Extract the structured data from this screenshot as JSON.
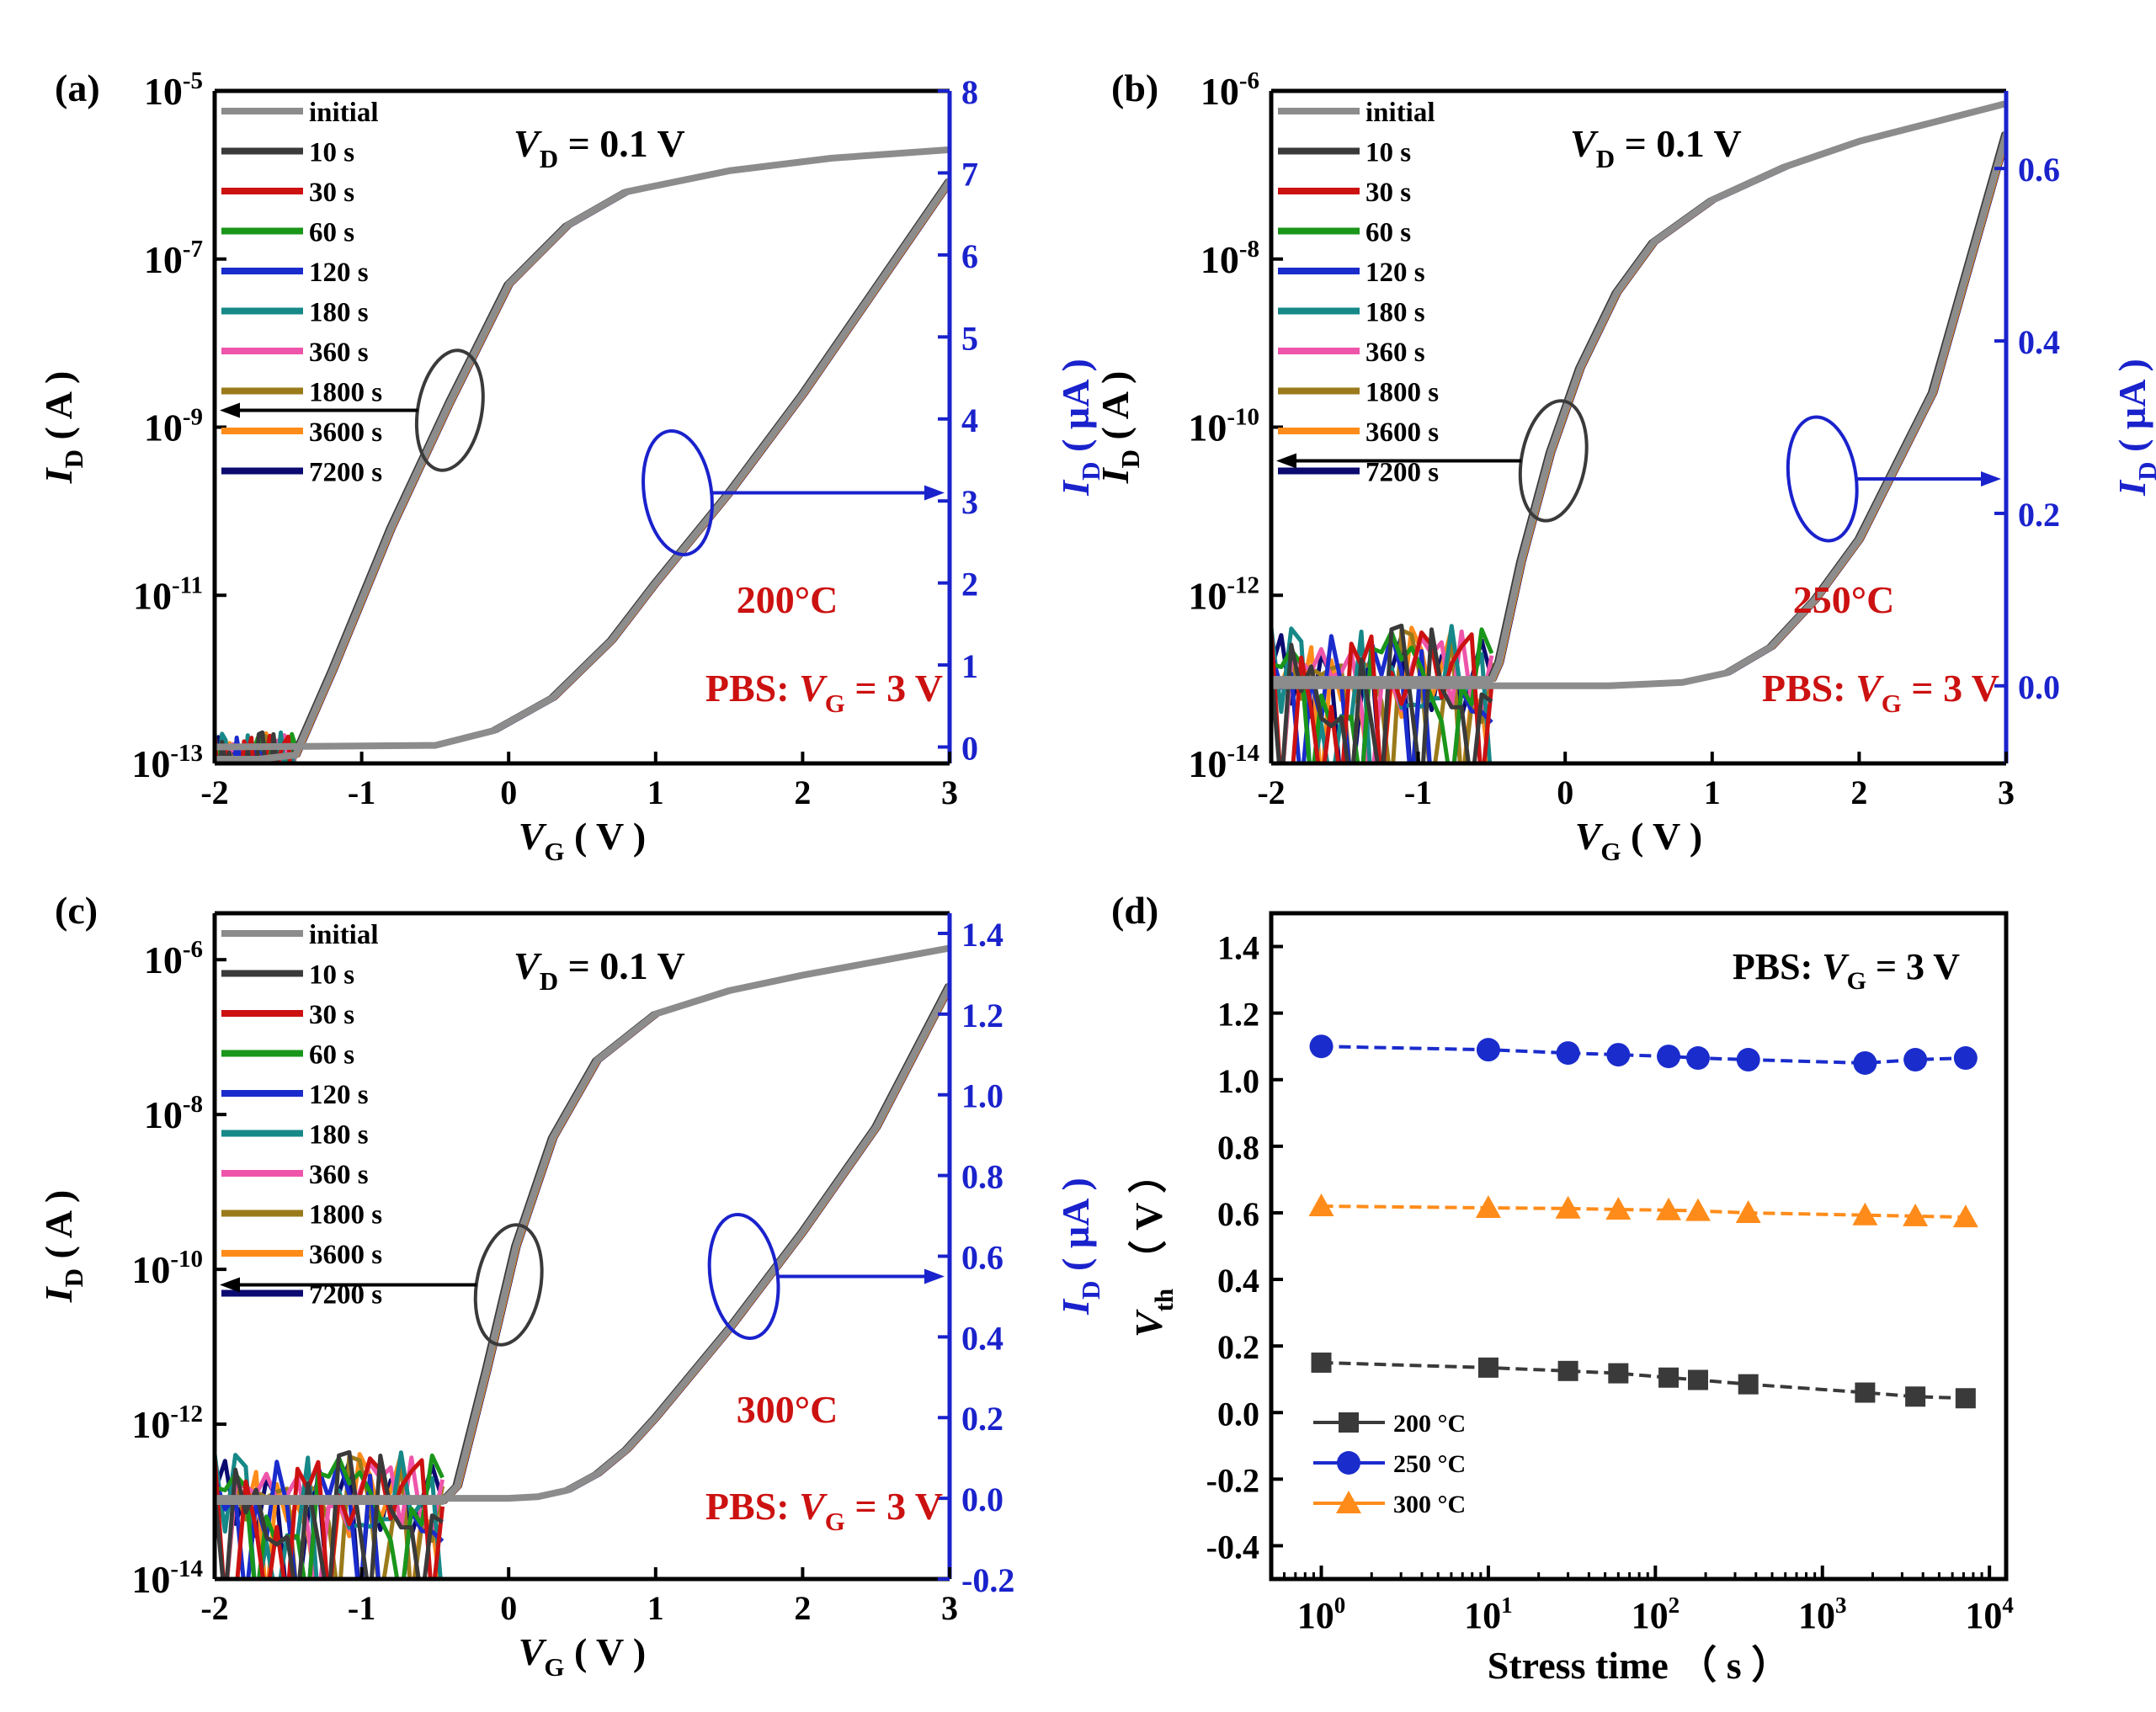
{
  "figure": {
    "legend_labels": [
      "initial",
      "10 s",
      "30 s",
      "60 s",
      "120 s",
      "180 s",
      "360 s",
      "1800 s",
      "3600 s",
      "7200 s"
    ],
    "legend_colors": [
      "#8c8c8c",
      "#3a3a3a",
      "#cc1111",
      "#1a961a",
      "#1a2ccc",
      "#168888",
      "#ee55aa",
      "#9a7a1a",
      "#ff8c1a",
      "#0a0a70"
    ],
    "axis_blue": "#1a22cc",
    "annot_red": "#cc1111",
    "text_black": "#000000"
  },
  "chart_data": [
    {
      "id": "a",
      "type": "line",
      "panel_label": "(a)",
      "vd_label": [
        "V",
        "D",
        " = 0.1 V"
      ],
      "temperature": "200°C",
      "pbs_label": [
        "PBS: ",
        "V",
        "G",
        " = 3 V"
      ],
      "xlabel": [
        "V",
        "G",
        " ( V )"
      ],
      "ylabel_left": [
        "I",
        "D",
        " ( A )"
      ],
      "ylabel_right": [
        "I",
        "D",
        " ( µA )"
      ],
      "x_range": [
        -2,
        3
      ],
      "x_ticks": [
        "-2",
        "-1",
        "0",
        "1",
        "2",
        "3"
      ],
      "y_left_log_range": [
        -13,
        -5
      ],
      "y_left_ticks": [
        {
          "exp": -5,
          "label": "-5"
        },
        {
          "exp": -7,
          "label": "-7"
        },
        {
          "exp": -9,
          "label": "-9"
        },
        {
          "exp": -11,
          "label": "-11"
        },
        {
          "exp": -13,
          "label": "-13"
        }
      ],
      "y_right_range": [
        -0.2,
        8
      ],
      "y_right_ticks": [
        "0",
        "1",
        "2",
        "3",
        "4",
        "5",
        "6",
        "7",
        "8"
      ],
      "log_curve": [
        [
          -2,
          -12.95
        ],
        [
          -1.7,
          -12.95
        ],
        [
          -1.45,
          -12.9
        ],
        [
          -1.2,
          -11.9
        ],
        [
          -0.8,
          -10.2
        ],
        [
          -0.4,
          -8.7
        ],
        [
          0,
          -7.3
        ],
        [
          0.4,
          -6.6
        ],
        [
          0.8,
          -6.2
        ],
        [
          1.5,
          -5.95
        ],
        [
          2.2,
          -5.8
        ],
        [
          3,
          -5.7
        ]
      ],
      "linear_curve": [
        [
          -2,
          0
        ],
        [
          -0.5,
          0.02
        ],
        [
          -0.1,
          0.2
        ],
        [
          0.3,
          0.6
        ],
        [
          0.7,
          1.3
        ],
        [
          1,
          2.0
        ],
        [
          1.5,
          3.1
        ],
        [
          2,
          4.3
        ],
        [
          2.5,
          5.6
        ],
        [
          3,
          6.9
        ]
      ],
      "offstate_noise": {
        "x_start": -2,
        "x_end": -1.45,
        "center_exp": -12.9,
        "amplitude": 0.3
      },
      "annotations": {
        "left_ellipse_center": [
          -0.4,
          -8.8
        ],
        "right_ellipse_center": [
          1.15,
          3.1
        ]
      }
    },
    {
      "id": "b",
      "type": "line",
      "panel_label": "(b)",
      "vd_label": [
        "V",
        "D",
        " = 0.1 V"
      ],
      "temperature": "250°C",
      "pbs_label": [
        "PBS: ",
        "V",
        "G",
        " = 3 V"
      ],
      "xlabel": [
        "V",
        "G",
        " ( V )"
      ],
      "ylabel_left": [
        "I",
        "D",
        " ( A )"
      ],
      "ylabel_right": [
        "I",
        "D",
        " ( µA )"
      ],
      "x_range": [
        -2,
        3
      ],
      "x_ticks": [
        "-2",
        "-1",
        "0",
        "1",
        "2",
        "3"
      ],
      "y_left_log_range": [
        -14,
        -6
      ],
      "y_left_ticks": [
        {
          "exp": -6,
          "label": "-6"
        },
        {
          "exp": -8,
          "label": "-8"
        },
        {
          "exp": -10,
          "label": "-10"
        },
        {
          "exp": -12,
          "label": "-12"
        },
        {
          "exp": -14,
          "label": "-14"
        }
      ],
      "y_right_range": [
        -0.09,
        0.69
      ],
      "y_right_ticks": [
        "0.0",
        "0.2",
        "0.4",
        "0.6"
      ],
      "log_curve": [
        [
          -2,
          -13
        ],
        [
          -0.5,
          -13
        ],
        [
          -0.45,
          -12.8
        ],
        [
          -0.3,
          -11.6
        ],
        [
          -0.1,
          -10.3
        ],
        [
          0.1,
          -9.3
        ],
        [
          0.35,
          -8.4
        ],
        [
          0.6,
          -7.8
        ],
        [
          1,
          -7.3
        ],
        [
          1.5,
          -6.9
        ],
        [
          2,
          -6.6
        ],
        [
          3,
          -6.15
        ]
      ],
      "linear_curve": [
        [
          -2,
          0
        ],
        [
          0.3,
          0
        ],
        [
          0.8,
          0.004
        ],
        [
          1.1,
          0.015
        ],
        [
          1.4,
          0.045
        ],
        [
          1.7,
          0.1
        ],
        [
          2,
          0.17
        ],
        [
          2.5,
          0.34
        ],
        [
          3,
          0.64
        ]
      ],
      "offstate_noise": {
        "x_start": -2,
        "x_end": -0.5,
        "center_exp": -12.9,
        "amplitude": 0.6
      },
      "annotations": {
        "left_ellipse_center": [
          -0.08,
          -10.4
        ],
        "right_ellipse_center": [
          1.75,
          0.24
        ]
      }
    },
    {
      "id": "c",
      "type": "line",
      "panel_label": "(c)",
      "vd_label": [
        "V",
        "D",
        " = 0.1 V"
      ],
      "temperature": "300°C",
      "pbs_label": [
        "PBS: ",
        "V",
        "G",
        " = 3 V"
      ],
      "xlabel": [
        "V",
        "G",
        " ( V )"
      ],
      "ylabel_left": [
        "I",
        "D",
        " ( A )"
      ],
      "ylabel_right": [
        "I",
        "D",
        " ( µA )"
      ],
      "x_range": [
        -2,
        3
      ],
      "x_ticks": [
        "-2",
        "-1",
        "0",
        "1",
        "2",
        "3"
      ],
      "y_left_log_range": [
        -14,
        -5.4
      ],
      "y_left_ticks": [
        {
          "exp": -6,
          "label": "-6"
        },
        {
          "exp": -8,
          "label": "-8"
        },
        {
          "exp": -10,
          "label": "-10"
        },
        {
          "exp": -12,
          "label": "-12"
        },
        {
          "exp": -14,
          "label": "-14"
        }
      ],
      "y_right_range": [
        -0.2,
        1.45
      ],
      "y_right_ticks": [
        "-0.2",
        "0.0",
        "0.2",
        "0.4",
        "0.6",
        "0.8",
        "1.0",
        "1.2",
        "1.4"
      ],
      "log_curve": [
        [
          -2,
          -13
        ],
        [
          -0.45,
          -13
        ],
        [
          -0.35,
          -12.8
        ],
        [
          -0.15,
          -11.3
        ],
        [
          0.05,
          -9.7
        ],
        [
          0.3,
          -8.3
        ],
        [
          0.6,
          -7.3
        ],
        [
          1,
          -6.7
        ],
        [
          1.5,
          -6.4
        ],
        [
          2,
          -6.2
        ],
        [
          3,
          -5.85
        ]
      ],
      "linear_curve": [
        [
          -2,
          0
        ],
        [
          0,
          0
        ],
        [
          0.2,
          0.004
        ],
        [
          0.4,
          0.02
        ],
        [
          0.6,
          0.06
        ],
        [
          0.8,
          0.12
        ],
        [
          1,
          0.2
        ],
        [
          1.5,
          0.42
        ],
        [
          2,
          0.66
        ],
        [
          2.5,
          0.92
        ],
        [
          3,
          1.27
        ]
      ],
      "offstate_noise": {
        "x_start": -2,
        "x_end": -0.45,
        "center_exp": -12.9,
        "amplitude": 0.6
      },
      "annotations": {
        "left_ellipse_center": [
          0,
          -10.2
        ],
        "right_ellipse_center": [
          1.6,
          0.55
        ]
      }
    },
    {
      "id": "d",
      "type": "scatter",
      "panel_label": "(d)",
      "pbs_label": [
        "PBS: ",
        "V",
        "G",
        " = 3 V"
      ],
      "xlabel": "Stress time （ s ）",
      "ylabel": [
        "V",
        "th",
        " （ V ）"
      ],
      "x_log_range": [
        -0.3,
        4.1
      ],
      "x_ticks": [
        {
          "exp": 0,
          "label": "0"
        },
        {
          "exp": 1,
          "label": "1"
        },
        {
          "exp": 2,
          "label": "2"
        },
        {
          "exp": 3,
          "label": "3"
        },
        {
          "exp": 4,
          "label": "4"
        }
      ],
      "y_range": [
        -0.5,
        1.5
      ],
      "y_ticks": [
        "-0.4",
        "-0.2",
        "0.0",
        "0.2",
        "0.4",
        "0.6",
        "0.8",
        "1.0",
        "1.2",
        "1.4"
      ],
      "x": [
        1,
        10,
        30,
        60,
        120,
        180,
        360,
        1800,
        3600,
        7200
      ],
      "series": [
        {
          "name": "200 °C",
          "marker": "square",
          "color": "#3a3a3a",
          "values": [
            0.15,
            0.135,
            0.125,
            0.118,
            0.105,
            0.098,
            0.085,
            0.06,
            0.048,
            0.043
          ]
        },
        {
          "name": "250 °C",
          "marker": "circle",
          "color": "#1a2ccc",
          "values": [
            1.1,
            1.09,
            1.08,
            1.075,
            1.07,
            1.065,
            1.06,
            1.05,
            1.06,
            1.065
          ]
        },
        {
          "name": "300 °C",
          "marker": "triangle",
          "color": "#ff8c1a",
          "values": [
            0.62,
            0.615,
            0.613,
            0.61,
            0.608,
            0.606,
            0.6,
            0.593,
            0.59,
            0.587
          ]
        }
      ]
    }
  ]
}
